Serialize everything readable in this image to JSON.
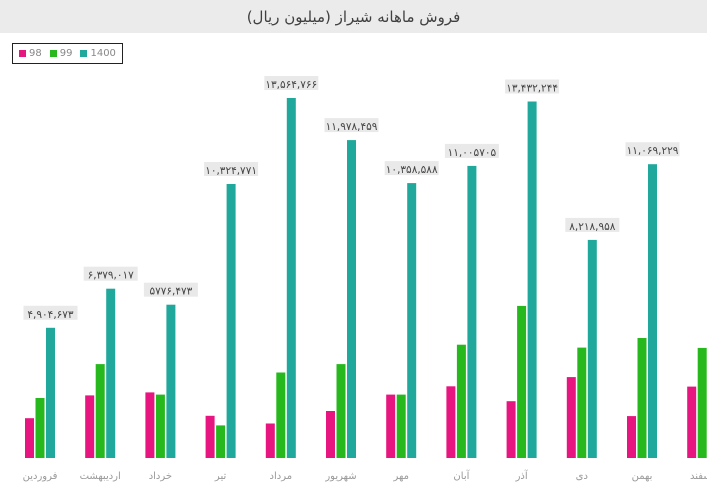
{
  "chart_data": {
    "type": "bar",
    "title": "فروش ماهانه شیراز (میلیون ریال)",
    "xlabel": "",
    "ylabel": "",
    "categories": [
      "فروردین",
      "اردیبهشت",
      "خرداد",
      "تیر",
      "مرداد",
      "شهریور",
      "مهر",
      "آبان",
      "آذر",
      "دی",
      "بهمن",
      "اسفند"
    ],
    "series": [
      {
        "name": "98",
        "color": "#e6157f",
        "values": [
          1500000,
          2360000,
          2470000,
          1590000,
          1300000,
          1770000,
          2390000,
          2700000,
          2140000,
          3050000,
          1580000,
          2690000
        ]
      },
      {
        "name": "99",
        "color": "#27b81d",
        "values": [
          2260000,
          3540000,
          2390000,
          1230000,
          3220000,
          3540000,
          2390000,
          4270000,
          5730000,
          4160000,
          4520000,
          4150000
        ]
      },
      {
        "name": "1400",
        "color": "#1fa89b",
        "values": [
          4904673,
          6379017,
          5776473,
          10324771,
          13564766,
          11978459,
          10358588,
          11005705,
          13432244,
          8218958,
          11069229,
          null
        ]
      }
    ],
    "data_labels": [
      "۴,۹۰۴,۶۷۳",
      "۶,۳۷۹,۰۱۷",
      "۵۷۷۶,۴۷۳",
      "۱۰,۳۲۴,۷۷۱",
      "۱۳,۵۶۴,۷۶۶",
      "۱۱,۹۷۸,۴۵۹",
      "۱۰,۳۵۸,۵۸۸",
      "۱۱,۰۰۵۷۰۵",
      "۱۳,۴۳۲,۲۴۴",
      "۸,۲۱۸,۹۵۸",
      "۱۱,۰۶۹,۲۲۹",
      ""
    ],
    "ylim": [
      0,
      14000000
    ],
    "grid": false,
    "legend_position": "top-left"
  }
}
